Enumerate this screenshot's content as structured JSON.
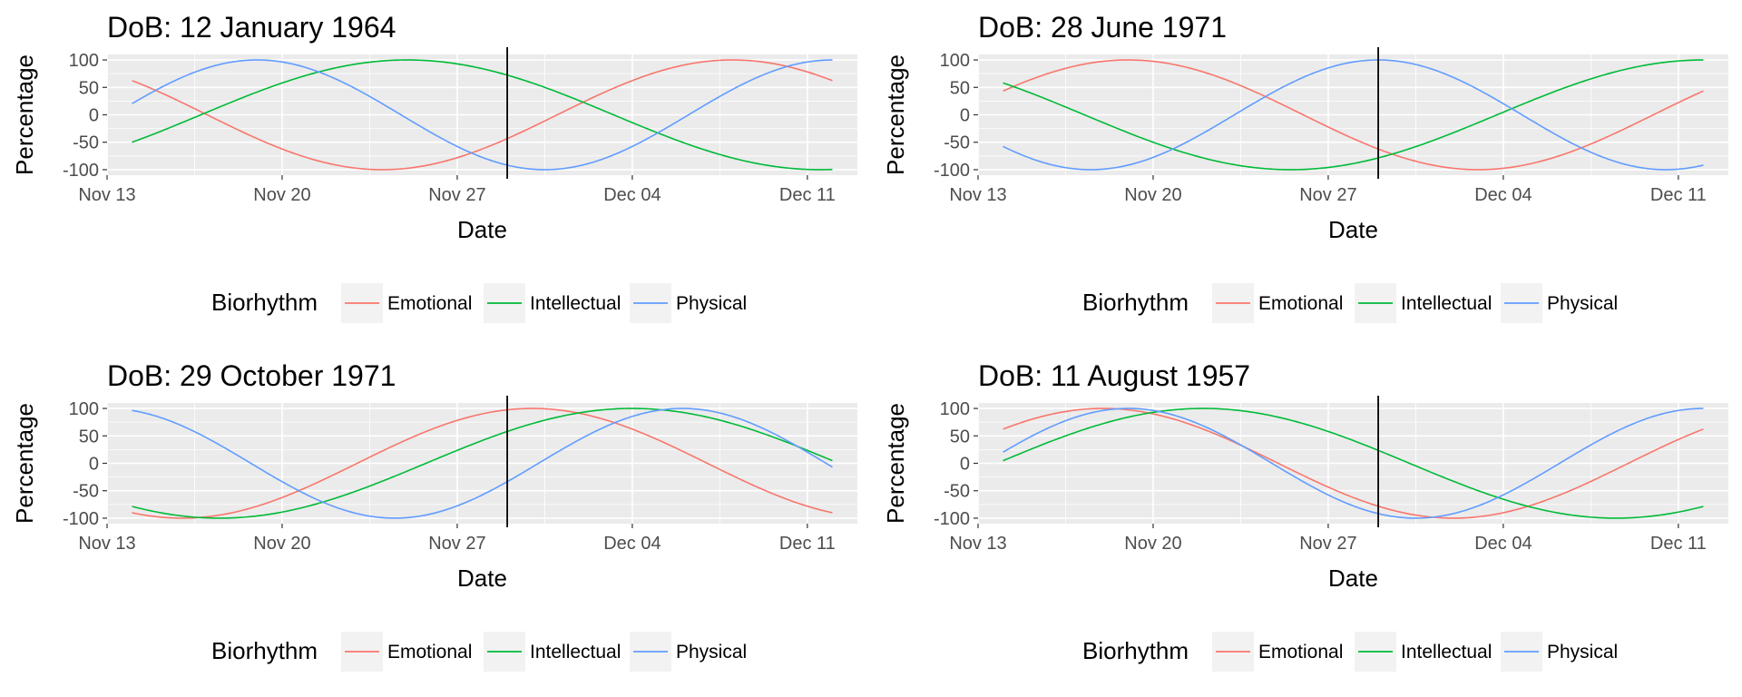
{
  "chart_data": [
    {
      "type": "line",
      "title": "DoB: 12 January 1964",
      "xlabel": "Date",
      "ylabel": "Percentage",
      "x_range": [
        "2019-11-14",
        "2019-12-12"
      ],
      "xlim": [
        "2019-11-13",
        "2019-12-13"
      ],
      "x_ticks": [
        "Nov 13",
        "Nov 20",
        "Nov 27",
        "Dec 04",
        "Dec 11"
      ],
      "x_tick_dates": [
        "2019-11-13",
        "2019-11-20",
        "2019-11-27",
        "2019-12-04",
        "2019-12-11"
      ],
      "ylim": [
        -100,
        100
      ],
      "y_ticks": [
        "100",
        "50",
        "0",
        "-50",
        "-100"
      ],
      "y_tick_values": [
        100,
        50,
        0,
        -50,
        -100
      ],
      "vline_date": "2019-11-29",
      "grid": true,
      "legend": {
        "title": "Biorhythm",
        "position": "bottom"
      },
      "series": [
        {
          "name": "Emotional",
          "color": "#F8766D",
          "period_days": 28,
          "peak_date": "2019-12-08"
        },
        {
          "name": "Intellectual",
          "color": "#00BA38",
          "period_days": 33,
          "peak_date": "2019-11-25"
        },
        {
          "name": "Physical",
          "color": "#619CFF",
          "period_days": 23,
          "peak_date": "2019-11-19"
        }
      ]
    },
    {
      "type": "line",
      "title": "DoB: 28 June 1971",
      "xlabel": "Date",
      "ylabel": "Percentage",
      "x_range": [
        "2019-11-14",
        "2019-12-12"
      ],
      "xlim": [
        "2019-11-13",
        "2019-12-13"
      ],
      "x_ticks": [
        "Nov 13",
        "Nov 20",
        "Nov 27",
        "Dec 04",
        "Dec 11"
      ],
      "x_tick_dates": [
        "2019-11-13",
        "2019-11-20",
        "2019-11-27",
        "2019-12-04",
        "2019-12-11"
      ],
      "ylim": [
        -100,
        100
      ],
      "y_ticks": [
        "100",
        "50",
        "0",
        "-50",
        "-100"
      ],
      "y_tick_values": [
        100,
        50,
        0,
        -50,
        -100
      ],
      "vline_date": "2019-11-29",
      "grid": true,
      "legend": {
        "title": "Biorhythm",
        "position": "bottom"
      },
      "series": [
        {
          "name": "Emotional",
          "color": "#F8766D",
          "period_days": 28,
          "peak_date": "2019-11-19"
        },
        {
          "name": "Intellectual",
          "color": "#00BA38",
          "period_days": 33,
          "peak_date": "2019-12-12"
        },
        {
          "name": "Physical",
          "color": "#619CFF",
          "period_days": 23,
          "peak_date": "2019-11-29"
        }
      ]
    },
    {
      "type": "line",
      "title": "DoB: 29 October 1971",
      "xlabel": "Date",
      "ylabel": "Percentage",
      "x_range": [
        "2019-11-14",
        "2019-12-12"
      ],
      "xlim": [
        "2019-11-13",
        "2019-12-13"
      ],
      "x_ticks": [
        "Nov 13",
        "Nov 20",
        "Nov 27",
        "Dec 04",
        "Dec 11"
      ],
      "x_tick_dates": [
        "2019-11-13",
        "2019-11-20",
        "2019-11-27",
        "2019-12-04",
        "2019-12-11"
      ],
      "ylim": [
        -100,
        100
      ],
      "y_ticks": [
        "100",
        "50",
        "0",
        "-50",
        "-100"
      ],
      "y_tick_values": [
        100,
        50,
        0,
        -50,
        -100
      ],
      "vline_date": "2019-11-29",
      "grid": true,
      "legend": {
        "title": "Biorhythm",
        "position": "bottom"
      },
      "series": [
        {
          "name": "Emotional",
          "color": "#F8766D",
          "period_days": 28,
          "peak_date": "2019-11-30"
        },
        {
          "name": "Intellectual",
          "color": "#00BA38",
          "period_days": 33,
          "peak_date": "2019-12-04"
        },
        {
          "name": "Physical",
          "color": "#619CFF",
          "period_days": 23,
          "peak_date": "2019-12-06"
        }
      ]
    },
    {
      "type": "line",
      "title": "DoB: 11 August 1957",
      "xlabel": "Date",
      "ylabel": "Percentage",
      "x_range": [
        "2019-11-14",
        "2019-12-12"
      ],
      "xlim": [
        "2019-11-13",
        "2019-12-13"
      ],
      "x_ticks": [
        "Nov 13",
        "Nov 20",
        "Nov 27",
        "Dec 04",
        "Dec 11"
      ],
      "x_tick_dates": [
        "2019-11-13",
        "2019-11-20",
        "2019-11-27",
        "2019-12-04",
        "2019-12-11"
      ],
      "ylim": [
        -100,
        100
      ],
      "y_ticks": [
        "100",
        "50",
        "0",
        "-50",
        "-100"
      ],
      "y_tick_values": [
        100,
        50,
        0,
        -50,
        -100
      ],
      "vline_date": "2019-11-29",
      "grid": true,
      "legend": {
        "title": "Biorhythm",
        "position": "bottom"
      },
      "series": [
        {
          "name": "Emotional",
          "color": "#F8766D",
          "period_days": 28,
          "peak_date": "2019-11-18"
        },
        {
          "name": "Intellectual",
          "color": "#00BA38",
          "period_days": 33,
          "peak_date": "2019-11-22"
        },
        {
          "name": "Physical",
          "color": "#619CFF",
          "period_days": 23,
          "peak_date": "2019-11-19"
        }
      ]
    }
  ]
}
